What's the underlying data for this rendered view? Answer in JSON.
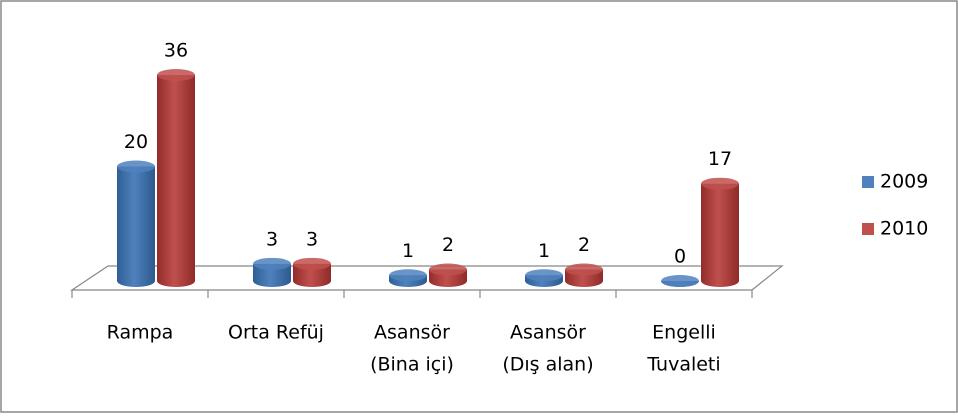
{
  "chart_data": {
    "type": "bar3d",
    "categories": [
      [
        "Rampa"
      ],
      [
        "Orta Refüj"
      ],
      [
        "Asansör",
        "(Bina içi)"
      ],
      [
        "Asansör",
        "(Dış alan)"
      ],
      [
        "Engelli",
        "Tuvaleti"
      ]
    ],
    "series": [
      {
        "name": "2009",
        "color": "#4f81bd",
        "values": [
          20,
          3,
          1,
          1,
          0
        ]
      },
      {
        "name": "2010",
        "color": "#c0504d",
        "values": [
          36,
          3,
          2,
          2,
          17
        ]
      }
    ],
    "legend": "right"
  }
}
